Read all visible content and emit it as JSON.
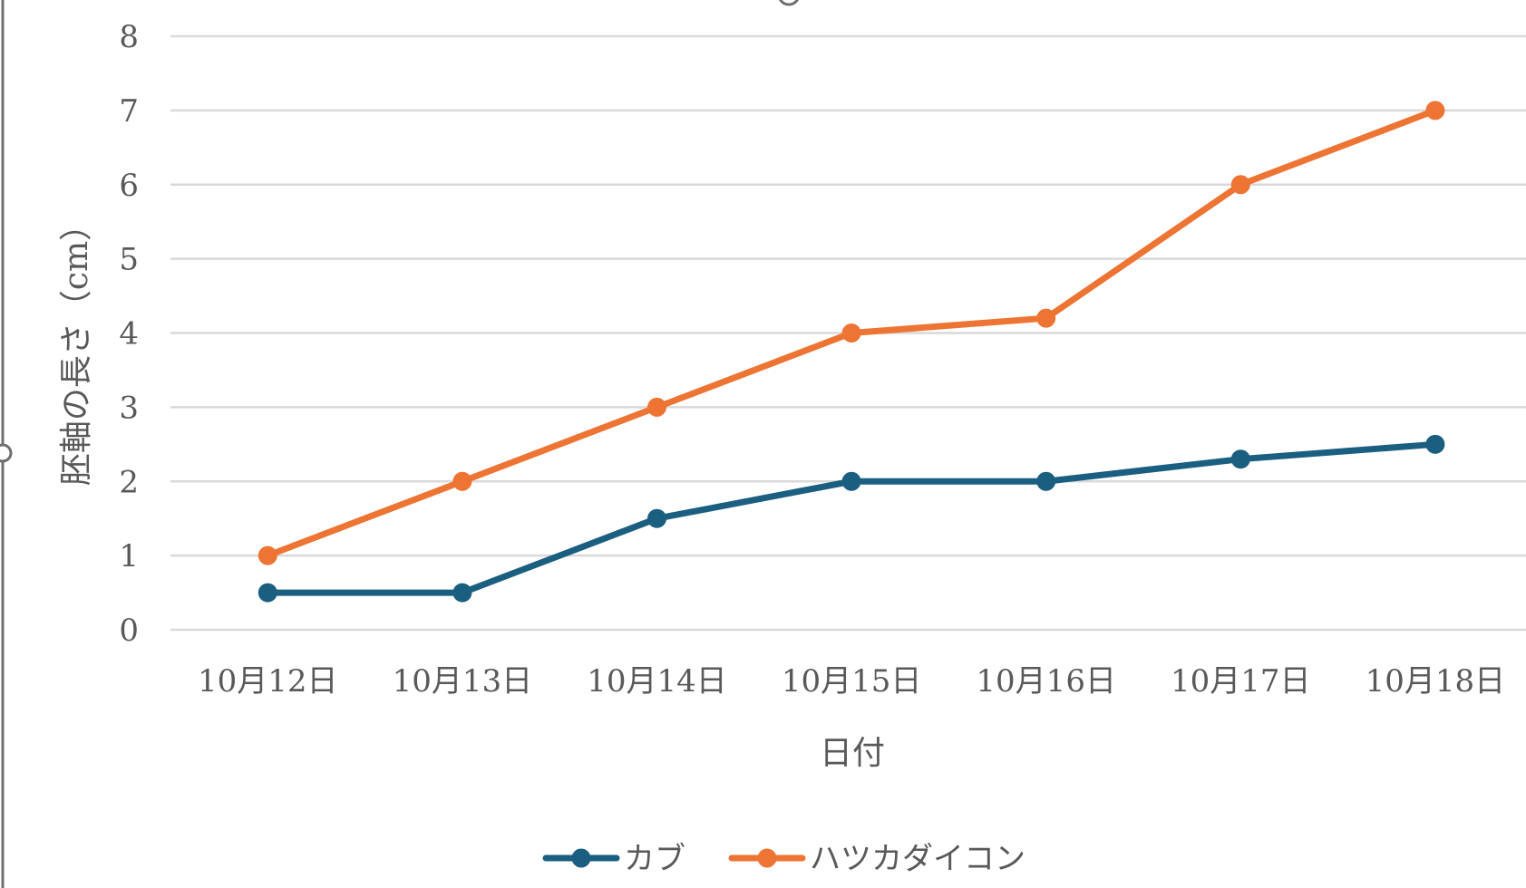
{
  "chart_data": {
    "type": "line",
    "categories": [
      "10月12日",
      "10月13日",
      "10月14日",
      "10月15日",
      "10月16日",
      "10月17日",
      "10月18日"
    ],
    "series": [
      {
        "name": "カブ",
        "color": "#1a5e80",
        "values": [
          0.5,
          0.5,
          1.5,
          2.0,
          2.0,
          2.3,
          2.5
        ]
      },
      {
        "name": "ハツカダイコン",
        "color": "#ed7433",
        "values": [
          1.0,
          2.0,
          3.0,
          4.0,
          4.2,
          6.0,
          7.0
        ]
      }
    ],
    "xlabel": "日付",
    "ylabel": "胚軸の長さ（cm）",
    "ylim": [
      0,
      8
    ],
    "yticks": [
      0,
      1,
      2,
      3,
      4,
      5,
      6,
      7,
      8
    ],
    "grid": true,
    "legend_position": "bottom",
    "gridline_color": "#d9d9d9",
    "text_color": "#595959"
  }
}
